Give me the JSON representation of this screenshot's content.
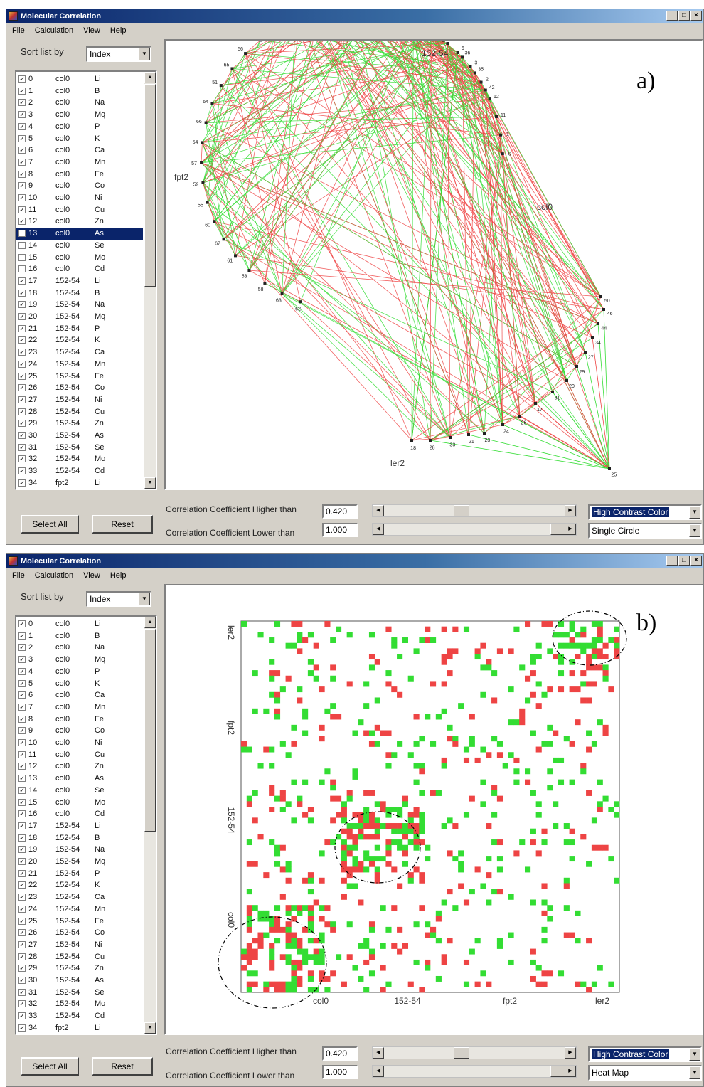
{
  "app": {
    "title": "Molecular Correlation"
  },
  "menu": [
    "File",
    "Calculation",
    "View",
    "Help"
  ],
  "sort": {
    "label": "Sort list by",
    "value": "Index"
  },
  "list_items": [
    {
      "index": "0",
      "group": "col0",
      "element": "Li",
      "checked": true
    },
    {
      "index": "1",
      "group": "col0",
      "element": "B",
      "checked": true
    },
    {
      "index": "2",
      "group": "col0",
      "element": "Na",
      "checked": true
    },
    {
      "index": "3",
      "group": "col0",
      "element": "Mq",
      "checked": true
    },
    {
      "index": "4",
      "group": "col0",
      "element": "P",
      "checked": true
    },
    {
      "index": "5",
      "group": "col0",
      "element": "K",
      "checked": true
    },
    {
      "index": "6",
      "group": "col0",
      "element": "Ca",
      "checked": true
    },
    {
      "index": "7",
      "group": "col0",
      "element": "Mn",
      "checked": true
    },
    {
      "index": "8",
      "group": "col0",
      "element": "Fe",
      "checked": true
    },
    {
      "index": "9",
      "group": "col0",
      "element": "Co",
      "checked": true
    },
    {
      "index": "10",
      "group": "col0",
      "element": "Ni",
      "checked": true
    },
    {
      "index": "11",
      "group": "col0",
      "element": "Cu",
      "checked": true
    },
    {
      "index": "12",
      "group": "col0",
      "element": "Zn",
      "checked": true
    },
    {
      "index": "13",
      "group": "col0",
      "element": "As",
      "checked": false
    },
    {
      "index": "14",
      "group": "col0",
      "element": "Se",
      "checked": false
    },
    {
      "index": "15",
      "group": "col0",
      "element": "Mo",
      "checked": false
    },
    {
      "index": "16",
      "group": "col0",
      "element": "Cd",
      "checked": false
    },
    {
      "index": "17",
      "group": "152-54",
      "element": "Li",
      "checked": true
    },
    {
      "index": "18",
      "group": "152-54",
      "element": "B",
      "checked": true
    },
    {
      "index": "19",
      "group": "152-54",
      "element": "Na",
      "checked": true
    },
    {
      "index": "20",
      "group": "152-54",
      "element": "Mq",
      "checked": true
    },
    {
      "index": "21",
      "group": "152-54",
      "element": "P",
      "checked": true
    },
    {
      "index": "22",
      "group": "152-54",
      "element": "K",
      "checked": true
    },
    {
      "index": "23",
      "group": "152-54",
      "element": "Ca",
      "checked": true
    },
    {
      "index": "24",
      "group": "152-54",
      "element": "Mn",
      "checked": true
    },
    {
      "index": "25",
      "group": "152-54",
      "element": "Fe",
      "checked": true
    },
    {
      "index": "26",
      "group": "152-54",
      "element": "Co",
      "checked": true
    },
    {
      "index": "27",
      "group": "152-54",
      "element": "Ni",
      "checked": true
    },
    {
      "index": "28",
      "group": "152-54",
      "element": "Cu",
      "checked": true
    },
    {
      "index": "29",
      "group": "152-54",
      "element": "Zn",
      "checked": true
    },
    {
      "index": "30",
      "group": "152-54",
      "element": "As",
      "checked": true
    },
    {
      "index": "31",
      "group": "152-54",
      "element": "Se",
      "checked": true
    },
    {
      "index": "32",
      "group": "152-54",
      "element": "Mo",
      "checked": true
    },
    {
      "index": "33",
      "group": "152-54",
      "element": "Cd",
      "checked": true
    },
    {
      "index": "34",
      "group": "fpt2",
      "element": "Li",
      "checked": true
    }
  ],
  "buttons": {
    "select_all": "Select All",
    "reset": "Reset"
  },
  "filters": {
    "higher_label": "Correlation Coefficient Higher than",
    "higher_value": "0.420",
    "higher_slider_fraction": 0.42,
    "lower_label": "Correlation Coefficient Lower than",
    "lower_value": "1.000",
    "lower_slider_fraction": 1.0
  },
  "color_scheme": "High Contrast Color",
  "colors": {
    "positive": "#33dd33",
    "negative": "#ee4444",
    "selection": "#0a246a"
  },
  "panel_a": {
    "letter": "a)",
    "view_mode": "Single Circle",
    "selected_index": 13,
    "group_labels": [
      "152-54",
      "col0",
      "fpt2",
      "ler2"
    ],
    "node_labels": [
      "18",
      "25",
      "22",
      "19",
      "32",
      "7",
      "10",
      "9",
      "5",
      "6",
      "3",
      "2",
      "12",
      "11",
      "1",
      "0",
      "62",
      "63",
      "58",
      "53",
      "61",
      "67",
      "60",
      "55",
      "59",
      "57",
      "54",
      "66",
      "64",
      "51",
      "65",
      "56",
      "52",
      "47",
      "40",
      "41",
      "48",
      "45",
      "38",
      "43",
      "39",
      "37",
      "49",
      "36",
      "35",
      "42",
      "50",
      "46",
      "44",
      "34",
      "27",
      "29",
      "20",
      "31",
      "17",
      "26",
      "24",
      "23",
      "21",
      "33",
      "28"
    ]
  },
  "panel_b": {
    "letter": "b)",
    "view_mode": "Heat Map",
    "axis_labels": [
      "col0",
      "152-54",
      "fpt2",
      "ler2"
    ]
  }
}
